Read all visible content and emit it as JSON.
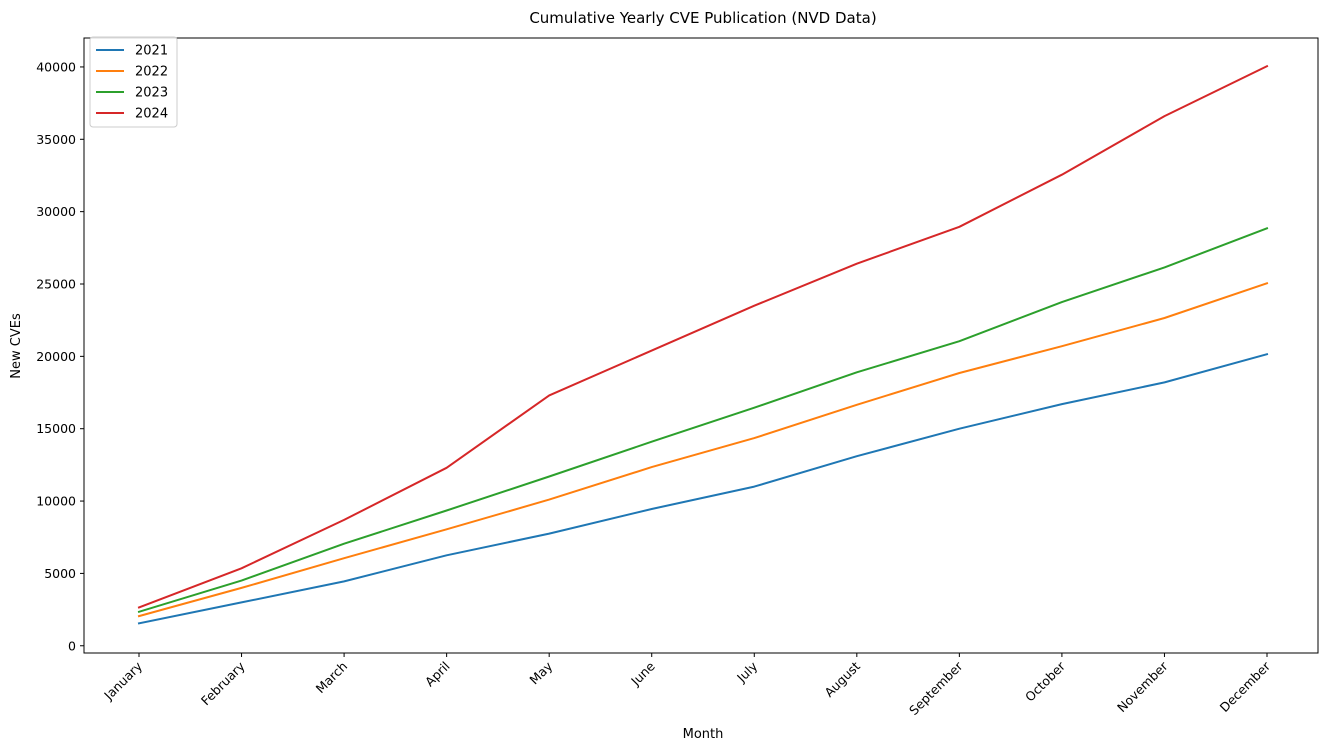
{
  "chart_data": {
    "type": "line",
    "title": "Cumulative Yearly CVE Publication (NVD Data)",
    "xlabel": "Month",
    "ylabel": "New CVEs",
    "categories": [
      "January",
      "February",
      "March",
      "April",
      "May",
      "June",
      "July",
      "August",
      "September",
      "October",
      "November",
      "December"
    ],
    "ylim": [
      -500,
      42000
    ],
    "yticks": [
      0,
      5000,
      10000,
      15000,
      20000,
      25000,
      30000,
      35000,
      40000
    ],
    "grid": false,
    "legend_position": "top-left",
    "series": [
      {
        "name": "2021",
        "color": "#1f77b4",
        "values": [
          1550,
          3000,
          4450,
          6250,
          7750,
          9450,
          11000,
          13100,
          15000,
          16700,
          18200,
          20150
        ]
      },
      {
        "name": "2022",
        "color": "#ff7f0e",
        "values": [
          2050,
          4000,
          6050,
          8050,
          10100,
          12350,
          14350,
          16650,
          18850,
          20700,
          22650,
          25050
        ]
      },
      {
        "name": "2023",
        "color": "#2ca02c",
        "values": [
          2350,
          4500,
          7050,
          9350,
          11700,
          14100,
          16450,
          18900,
          21050,
          23750,
          26150,
          28850
        ]
      },
      {
        "name": "2024",
        "color": "#d62728",
        "values": [
          2650,
          5350,
          8700,
          12300,
          17300,
          20400,
          23500,
          26400,
          28950,
          32550,
          36600,
          40050
        ]
      }
    ]
  }
}
